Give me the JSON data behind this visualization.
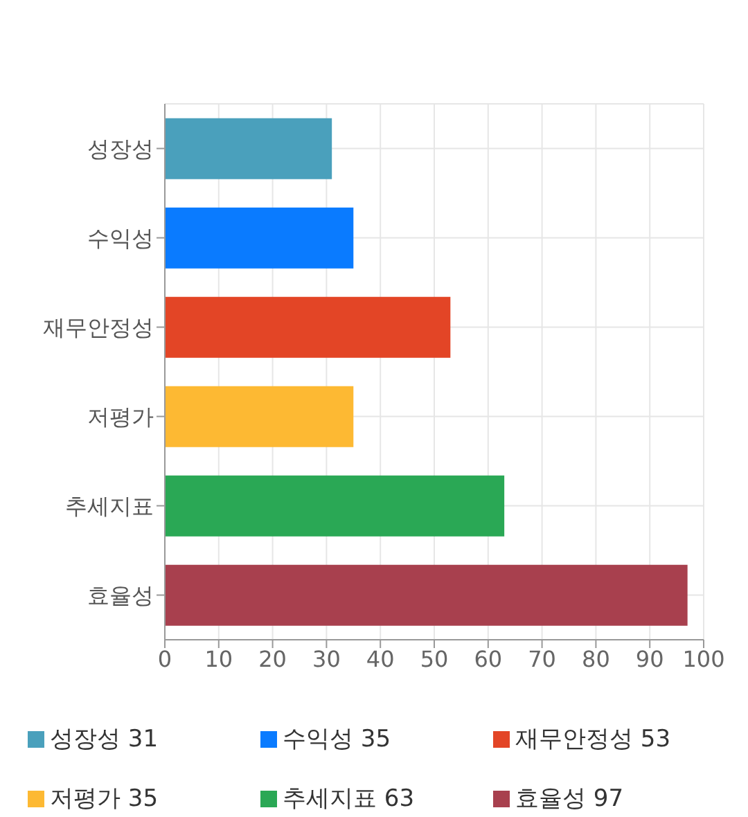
{
  "chart_data": {
    "type": "bar",
    "orientation": "horizontal",
    "stacked": true,
    "categories": [
      "성장성",
      "수익성",
      "재무안정성",
      "저평가",
      "추세지표",
      "효율성"
    ],
    "series": [
      {
        "name": "성장성 31",
        "color": "#4aa0bc",
        "values": [
          31,
          null,
          null,
          null,
          null,
          null
        ]
      },
      {
        "name": "수익성 35",
        "color": "#0a7bff",
        "values": [
          null,
          35,
          null,
          null,
          null,
          null
        ]
      },
      {
        "name": "재무안정성 53",
        "color": "#e34526",
        "values": [
          null,
          null,
          53,
          null,
          null,
          null
        ]
      },
      {
        "name": "저평가 35",
        "color": "#fdb933",
        "values": [
          null,
          null,
          null,
          35,
          null,
          null
        ]
      },
      {
        "name": "추세지표 63",
        "color": "#2aa855",
        "values": [
          null,
          null,
          null,
          null,
          63,
          null
        ]
      },
      {
        "name": "효율성 97",
        "color": "#a8404e",
        "values": [
          null,
          null,
          null,
          null,
          null,
          97
        ]
      }
    ],
    "xlim": [
      0,
      100
    ],
    "xticks": [
      0,
      10,
      20,
      30,
      40,
      50,
      60,
      70,
      80,
      90,
      100
    ],
    "grid": true,
    "legend": "bottom"
  }
}
